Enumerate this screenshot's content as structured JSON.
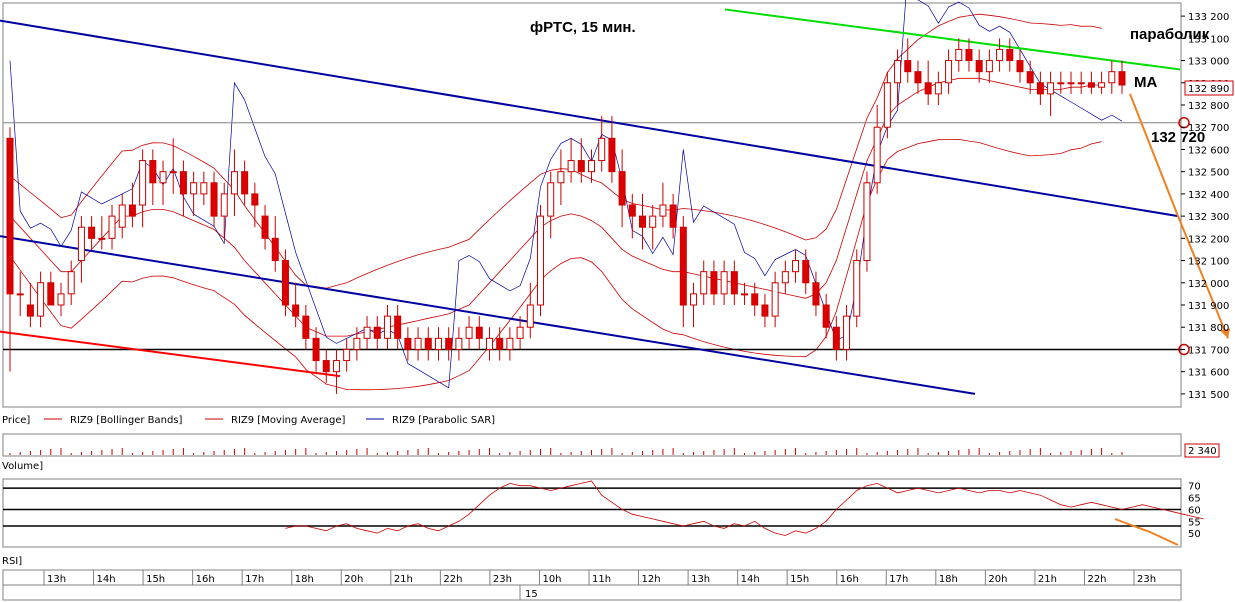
{
  "chart_data": {
    "type": "candlestick",
    "title": "фРТС,  15 мин.",
    "price_axis": {
      "ylim": [
        131450,
        133250
      ],
      "ticks": [
        133200,
        133100,
        133000,
        132900,
        132800,
        132700,
        132600,
        132500,
        132400,
        132300,
        132200,
        132100,
        132000,
        131900,
        131800,
        131700,
        131600,
        131500
      ],
      "tick_labels": [
        "133 200",
        "133 100",
        "133 000",
        "132 900",
        "132 800",
        "132 700",
        "132 600",
        "132 500",
        "132 400",
        "132 300",
        "132 200",
        "132 100",
        "132 000",
        "131 900",
        "131 800",
        "131 700",
        "131 600",
        "131 500"
      ]
    },
    "last_price_label": "132 890",
    "last_price": 132890,
    "annotations": {
      "parabolic": "параболик",
      "ma": "MA",
      "level": "132 720"
    },
    "levels": [
      {
        "value": 131700,
        "color": "#000000"
      },
      {
        "value": 132720,
        "color": "#808080"
      }
    ],
    "legend": [
      "Price]",
      "RIZ9 [Bollinger Bands]",
      "RIZ9 [Moving Average]",
      "RIZ9 [Parabolic SAR]"
    ],
    "volume": {
      "label": "Volume]",
      "value_label": "2 340"
    },
    "rsi": {
      "label": "RSI]",
      "ylim": [
        45,
        72
      ],
      "ticks": [
        70,
        65,
        60,
        55,
        50
      ],
      "levels": [
        69,
        60,
        53
      ],
      "values": [
        null,
        null,
        null,
        null,
        null,
        null,
        null,
        null,
        null,
        null,
        null,
        null,
        null,
        null,
        null,
        null,
        null,
        null,
        null,
        null,
        null,
        null,
        null,
        null,
        null,
        null,
        null,
        52,
        53,
        53,
        52,
        51,
        53,
        54,
        52,
        51,
        50,
        52,
        51,
        53,
        54,
        52,
        51,
        53,
        55,
        58,
        62,
        66,
        69,
        71,
        70,
        70,
        69,
        68,
        69,
        70,
        71,
        72,
        66,
        63,
        60,
        58,
        57,
        56,
        55,
        54,
        53,
        54,
        55,
        53,
        52,
        54,
        53,
        55,
        52,
        50,
        49,
        51,
        50,
        52,
        55,
        60,
        64,
        68,
        70,
        71,
        69,
        67,
        68,
        69,
        68,
        67,
        68,
        69,
        68,
        67,
        68,
        68,
        67,
        68,
        67,
        66,
        64,
        62,
        61,
        62,
        63,
        62,
        61,
        60,
        61,
        62,
        61,
        60,
        59,
        58,
        57,
        56
      ]
    },
    "time_axis": {
      "labels": [
        "13h",
        "14h",
        "15h",
        "16h",
        "17h",
        "18h",
        "20h",
        "21h",
        "22h",
        "23h",
        "10h",
        "11h",
        "12h",
        "13h",
        "14h",
        "15h",
        "16h",
        "17h",
        "18h",
        "20h",
        "21h",
        "22h",
        "23h"
      ],
      "date_label": "15"
    },
    "candles": [
      [
        132650,
        132700,
        131600,
        131950
      ],
      [
        131950,
        132050,
        131850,
        131950
      ],
      [
        131900,
        132000,
        131800,
        131850
      ],
      [
        131850,
        132050,
        131800,
        132000
      ],
      [
        132000,
        132050,
        131900,
        131900
      ],
      [
        131900,
        132000,
        131850,
        131950
      ],
      [
        131950,
        132100,
        131900,
        132050
      ],
      [
        132100,
        132300,
        132000,
        132250
      ],
      [
        132250,
        132300,
        132150,
        132200
      ],
      [
        132200,
        132300,
        132150,
        132200
      ],
      [
        132200,
        132350,
        132150,
        132300
      ],
      [
        132250,
        132400,
        132200,
        132350
      ],
      [
        132350,
        132450,
        132250,
        132300
      ],
      [
        132350,
        132600,
        132250,
        132550
      ],
      [
        132550,
        132600,
        132350,
        132450
      ],
      [
        132450,
        132550,
        132350,
        132500
      ],
      [
        132500,
        132650,
        132400,
        132500
      ],
      [
        132500,
        132550,
        132300,
        132400
      ],
      [
        132400,
        132500,
        132300,
        132450
      ],
      [
        132400,
        132500,
        132350,
        132450
      ],
      [
        132450,
        132500,
        132250,
        132300
      ],
      [
        132300,
        132450,
        132200,
        132400
      ],
      [
        132400,
        132600,
        132300,
        132500
      ],
      [
        132500,
        132550,
        132350,
        132400
      ],
      [
        132400,
        132450,
        132250,
        132350
      ],
      [
        132300,
        132350,
        132150,
        132200
      ],
      [
        132200,
        132300,
        132050,
        132100
      ],
      [
        132100,
        132150,
        131850,
        131900
      ],
      [
        131900,
        132000,
        131800,
        131850
      ],
      [
        131850,
        131900,
        131700,
        131750
      ],
      [
        131750,
        131800,
        131600,
        131650
      ],
      [
        131650,
        131700,
        131550,
        131600
      ],
      [
        131600,
        131700,
        131500,
        131650
      ],
      [
        131650,
        131750,
        131600,
        131700
      ],
      [
        131700,
        131800,
        131650,
        131750
      ],
      [
        131750,
        131850,
        131700,
        131800
      ],
      [
        131800,
        131850,
        131700,
        131750
      ],
      [
        131750,
        131900,
        131700,
        131850
      ],
      [
        131850,
        131900,
        131700,
        131750
      ],
      [
        131750,
        131800,
        131650,
        131700
      ],
      [
        131700,
        131800,
        131650,
        131750
      ],
      [
        131750,
        131800,
        131650,
        131700
      ],
      [
        131700,
        131800,
        131650,
        131750
      ],
      [
        131750,
        131800,
        131650,
        131700
      ],
      [
        131700,
        131800,
        131650,
        131750
      ],
      [
        131750,
        131850,
        131700,
        131800
      ],
      [
        131800,
        131850,
        131700,
        131750
      ],
      [
        131700,
        131800,
        131650,
        131750
      ],
      [
        131750,
        131800,
        131650,
        131700
      ],
      [
        131700,
        131800,
        131650,
        131750
      ],
      [
        131750,
        131850,
        131700,
        131800
      ],
      [
        131800,
        132000,
        131750,
        131900
      ],
      [
        131900,
        132350,
        131850,
        132300
      ],
      [
        132300,
        132500,
        132200,
        132450
      ],
      [
        132450,
        132600,
        132350,
        132500
      ],
      [
        132500,
        132650,
        132450,
        132550
      ],
      [
        132550,
        132650,
        132450,
        132500
      ],
      [
        132500,
        132600,
        132450,
        132550
      ],
      [
        132550,
        132750,
        132500,
        132650
      ],
      [
        132650,
        132750,
        132450,
        132500
      ],
      [
        132500,
        132600,
        132250,
        132350
      ],
      [
        132350,
        132400,
        132200,
        132300
      ],
      [
        132300,
        132400,
        132150,
        132250
      ],
      [
        132250,
        132350,
        132150,
        132300
      ],
      [
        132300,
        132450,
        132250,
        132350
      ],
      [
        132350,
        132400,
        132200,
        132250
      ],
      [
        132250,
        132300,
        131800,
        131900
      ],
      [
        131900,
        132000,
        131800,
        131950
      ],
      [
        131950,
        132100,
        131900,
        132050
      ],
      [
        132050,
        132100,
        131900,
        131950
      ],
      [
        131950,
        132100,
        131900,
        132050
      ],
      [
        132050,
        132100,
        131900,
        131950
      ],
      [
        131950,
        132000,
        131900,
        131950
      ],
      [
        131950,
        132000,
        131850,
        131900
      ],
      [
        131900,
        131950,
        131800,
        131850
      ],
      [
        131850,
        132050,
        131800,
        132000
      ],
      [
        132000,
        132100,
        131950,
        132050
      ],
      [
        132050,
        132150,
        132000,
        132100
      ],
      [
        132100,
        132150,
        131950,
        132000
      ],
      [
        132000,
        132050,
        131850,
        131900
      ],
      [
        131900,
        131950,
        131750,
        131800
      ],
      [
        131800,
        131850,
        131650,
        131700
      ],
      [
        131700,
        131900,
        131650,
        131850
      ],
      [
        131850,
        132150,
        131800,
        132100
      ],
      [
        132100,
        132500,
        132050,
        132450
      ],
      [
        132450,
        132800,
        132400,
        132700
      ],
      [
        132700,
        132950,
        132650,
        132900
      ],
      [
        132900,
        133050,
        132800,
        133000
      ],
      [
        133000,
        133100,
        132900,
        132950
      ],
      [
        132950,
        133000,
        132850,
        132900
      ],
      [
        132900,
        133000,
        132800,
        132850
      ],
      [
        132850,
        132950,
        132800,
        132900
      ],
      [
        132900,
        133050,
        132850,
        133000
      ],
      [
        133000,
        133100,
        132950,
        133050
      ],
      [
        133050,
        133100,
        132950,
        133000
      ],
      [
        133000,
        133050,
        132900,
        132950
      ],
      [
        132950,
        133050,
        132900,
        133000
      ],
      [
        133000,
        133100,
        132950,
        133050
      ],
      [
        133050,
        133100,
        132950,
        133000
      ],
      [
        133000,
        133050,
        132900,
        132950
      ],
      [
        132950,
        133000,
        132850,
        132900
      ],
      [
        132900,
        132950,
        132800,
        132850
      ],
      [
        132850,
        132950,
        132750,
        132900
      ],
      [
        132900,
        132950,
        132850,
        132900
      ],
      [
        132900,
        132950,
        132850,
        132900
      ],
      [
        132900,
        132950,
        132850,
        132900
      ],
      [
        132900,
        132950,
        132850,
        132880
      ],
      [
        132880,
        132950,
        132850,
        132900
      ],
      [
        132900,
        133000,
        132850,
        132950
      ],
      [
        132950,
        133000,
        132850,
        132890
      ]
    ],
    "trend_lines": [
      {
        "color": "#0000a0",
        "points": [
          [
            0,
            133180
          ],
          [
            1178,
            132300
          ]
        ]
      },
      {
        "color": "#0000a0",
        "points": [
          [
            0,
            132210
          ],
          [
            975,
            131500
          ]
        ]
      },
      {
        "color": "#ff0000",
        "points": [
          [
            0,
            131780
          ],
          [
            340,
            131580
          ]
        ]
      },
      {
        "color": "#00dd00",
        "points": [
          [
            725,
            133230
          ],
          [
            1180,
            132960
          ]
        ]
      }
    ],
    "forecast_arrows": [
      {
        "color": "#f08020",
        "points": [
          [
            1130,
            132850
          ],
          [
            1178,
            132300
          ],
          [
            1228,
            131750
          ]
        ]
      }
    ],
    "moving_average": [
      132300,
      132250,
      132200,
      132150,
      132100,
      132050,
      132050,
      132100,
      132150,
      132200,
      132250,
      132300,
      132300,
      132320,
      132330,
      132330,
      132320,
      132300,
      132280,
      132260,
      132240,
      132200,
      132160,
      132100,
      132050,
      132000,
      131950,
      131900,
      131850,
      131800,
      131780,
      131760,
      131760,
      131760,
      131770,
      131780,
      131790,
      131800,
      131810,
      131820,
      131830,
      131840,
      131850,
      131860,
      131880,
      131900,
      131950,
      132000,
      132050,
      132100,
      132150,
      132200,
      132250,
      132280,
      132300,
      132310,
      132300,
      132280,
      132250,
      132200,
      132150,
      132120,
      132100,
      132080,
      132060,
      132050,
      132050,
      132040,
      132030,
      132020,
      132010,
      132000,
      131990,
      131980,
      131970,
      131960,
      131950,
      131940,
      131930,
      131950,
      132000,
      132100,
      132250,
      132400,
      132550,
      132650,
      132750,
      132800,
      132830,
      132860,
      132880,
      132900,
      132910,
      132920,
      132920,
      132920,
      132910,
      132900,
      132890,
      132880,
      132870,
      132870,
      132870,
      132870,
      132880,
      132880,
      132890,
      132890
    ]
  }
}
